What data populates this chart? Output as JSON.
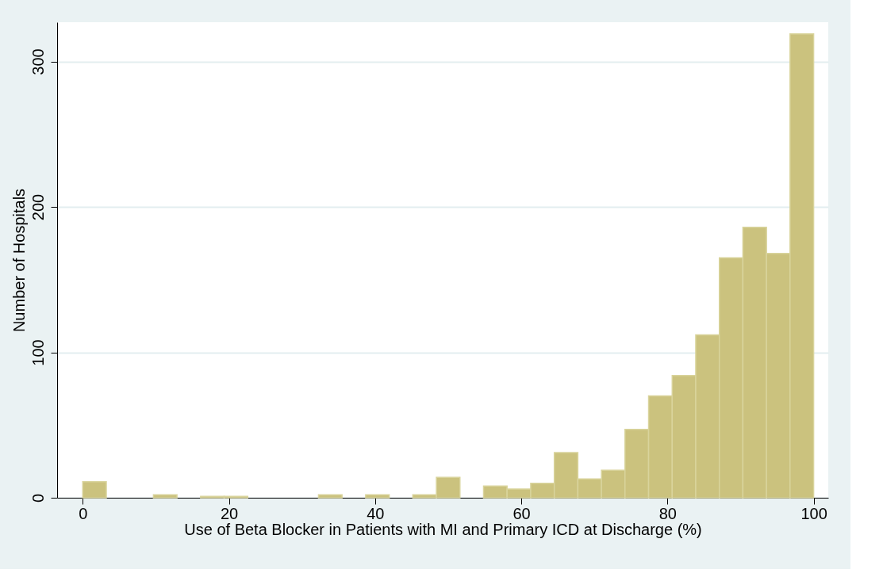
{
  "chart_data": {
    "type": "histogram",
    "xlabel": "Use of Beta Blocker in Patients with MI and Primary ICD at Discharge (%)",
    "ylabel": "Number of Hospitals",
    "bins": [
      0,
      3.23,
      6.45,
      9.68,
      12.9,
      16.13,
      19.35,
      22.58,
      25.81,
      29.03,
      32.26,
      35.48,
      38.71,
      41.94,
      45.16,
      48.39,
      51.61,
      54.84,
      58.06,
      61.29,
      64.52,
      67.74,
      70.97,
      74.19,
      77.42,
      80.65,
      83.87,
      87.1,
      90.32,
      93.55,
      96.77,
      100
    ],
    "values": [
      11,
      0,
      0,
      2,
      0,
      1,
      1,
      0,
      0,
      0,
      2,
      0,
      2,
      0,
      2,
      14,
      0,
      8,
      6,
      10,
      31,
      13,
      19,
      47,
      70,
      84,
      112,
      165,
      186,
      168,
      319
    ],
    "color": "#cbc27e",
    "xlim": [
      -3.5,
      102
    ],
    "xticks": [
      0,
      20,
      40,
      60,
      80,
      100
    ],
    "ylim": [
      0,
      327
    ],
    "yticks": [
      0,
      100,
      200,
      300
    ],
    "grid": "y"
  }
}
